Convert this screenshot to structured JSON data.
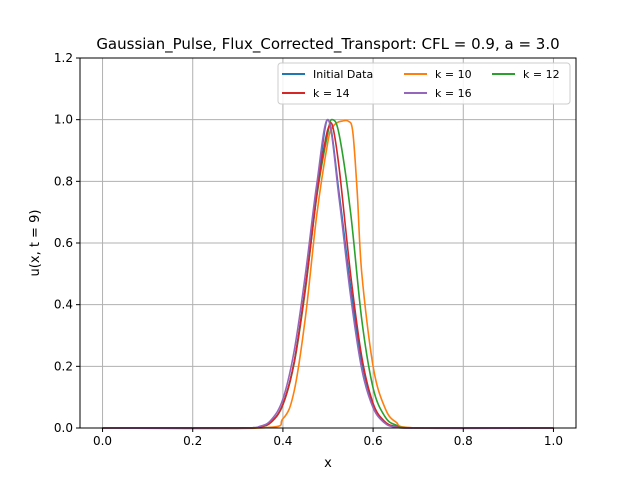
{
  "chart_data": {
    "type": "line",
    "title": "Gaussian_Pulse, Flux_Corrected_Transport: CFL = 0.9, a = 3.0",
    "xlabel": "x",
    "ylabel": "u(x, t = 9)",
    "xlim": [
      -0.05,
      1.05
    ],
    "ylim": [
      0.0,
      1.2
    ],
    "xticks": [
      0.0,
      0.2,
      0.4,
      0.6,
      0.8,
      1.0
    ],
    "xtick_labels": [
      "0.0",
      "0.2",
      "0.4",
      "0.6",
      "0.8",
      "1.0"
    ],
    "yticks": [
      0.0,
      0.2,
      0.4,
      0.6,
      0.8,
      1.0,
      1.2
    ],
    "ytick_labels": [
      "0.0",
      "0.2",
      "0.4",
      "0.6",
      "0.8",
      "1.0",
      "1.2"
    ],
    "grid": true,
    "legend_position": "top-right",
    "legend_columns": 3,
    "series": [
      {
        "name": "Initial Data",
        "color": "#1f77b4",
        "x": [
          0.0,
          0.3,
          0.35,
          0.375,
          0.4,
          0.425,
          0.45,
          0.475,
          0.5,
          0.525,
          0.55,
          0.575,
          0.6,
          0.625,
          0.65,
          0.7,
          1.0
        ],
        "y": [
          0.0,
          0.0,
          0.004,
          0.021,
          0.077,
          0.214,
          0.458,
          0.757,
          1.0,
          0.757,
          0.458,
          0.214,
          0.077,
          0.021,
          0.004,
          0.0,
          0.0
        ]
      },
      {
        "name": "k = 10",
        "color": "#ff7f0e",
        "x": [
          0.0,
          0.35,
          0.4,
          0.425,
          0.45,
          0.475,
          0.5,
          0.51,
          0.52,
          0.53,
          0.545,
          0.555,
          0.565,
          0.575,
          0.6,
          0.625,
          0.65,
          0.7,
          1.0
        ],
        "y": [
          0.0,
          0.0,
          0.03,
          0.12,
          0.36,
          0.69,
          0.93,
          0.975,
          0.99,
          0.995,
          0.995,
          0.96,
          0.76,
          0.5,
          0.2,
          0.07,
          0.02,
          0.0,
          0.0
        ]
      },
      {
        "name": "k = 12",
        "color": "#2ca02c",
        "x": [
          0.0,
          0.3,
          0.35,
          0.375,
          0.4,
          0.425,
          0.45,
          0.475,
          0.5,
          0.51,
          0.525,
          0.55,
          0.575,
          0.6,
          0.625,
          0.65,
          0.7,
          1.0
        ],
        "y": [
          0.0,
          0.0,
          0.004,
          0.02,
          0.075,
          0.21,
          0.45,
          0.75,
          0.96,
          1.0,
          0.95,
          0.7,
          0.35,
          0.13,
          0.04,
          0.01,
          0.0,
          0.0
        ]
      },
      {
        "name": "k = 14",
        "color": "#d62728",
        "x": [
          0.0,
          0.3,
          0.35,
          0.375,
          0.4,
          0.425,
          0.45,
          0.475,
          0.49,
          0.5,
          0.51,
          0.525,
          0.55,
          0.575,
          0.6,
          0.625,
          0.65,
          0.7,
          1.0
        ],
        "y": [
          0.0,
          0.0,
          0.004,
          0.021,
          0.077,
          0.214,
          0.458,
          0.757,
          0.9,
          0.97,
          0.98,
          0.84,
          0.5,
          0.23,
          0.08,
          0.022,
          0.005,
          0.0,
          0.0
        ]
      },
      {
        "name": "k = 16",
        "color": "#9467bd",
        "x": [
          0.0,
          0.3,
          0.35,
          0.375,
          0.4,
          0.425,
          0.45,
          0.475,
          0.5,
          0.525,
          0.55,
          0.575,
          0.6,
          0.625,
          0.65,
          0.7,
          1.0
        ],
        "y": [
          0.0,
          0.0,
          0.006,
          0.028,
          0.094,
          0.25,
          0.5,
          0.79,
          1.0,
          0.74,
          0.43,
          0.19,
          0.066,
          0.017,
          0.003,
          0.0,
          0.0
        ]
      }
    ]
  }
}
